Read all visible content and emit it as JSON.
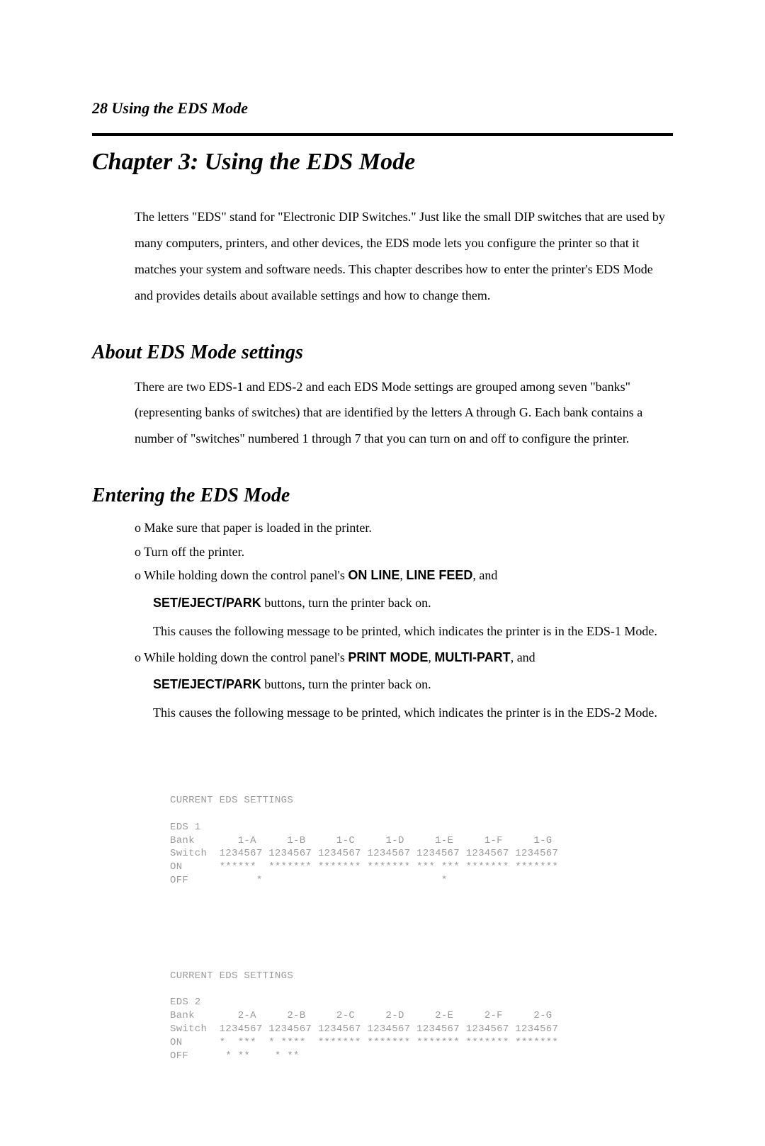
{
  "header": {
    "pageNumber": "28",
    "runningTitle": "Using the EDS Mode"
  },
  "chapterTitle": "Chapter 3: Using the EDS Mode",
  "intro": "The letters \"EDS\" stand for \"Electronic DIP Switches.\" Just like the small DIP switches that are used by many computers, printers, and other devices, the EDS mode lets you configure the printer so that it matches your system and software needs. This chapter describes how to enter the printer's EDS Mode and provides details about available settings and how to change them.",
  "section1": {
    "title": "About EDS Mode settings",
    "body": "There are two EDS-1 and EDS-2 and each EDS Mode settings are grouped among seven \"banks\" (representing banks of switches) that are identified by the letters A through G. Each bank contains a number of \"switches\" numbered 1 through 7 that you can turn on and off to configure the printer."
  },
  "section2": {
    "title": "Entering the EDS Mode",
    "items": [
      {
        "text": "o Make sure that paper is loaded in the printer."
      },
      {
        "text": "o Turn off the printer."
      },
      {
        "pre": "o While holding down the control panel's ",
        "b1": "ON LINE",
        "mid1": ", ",
        "b2": "LINE FEED",
        "post": ", and",
        "sub_b": "SET/EJECT/PARK",
        "sub_tail": " buttons, turn the printer back on.",
        "sub_desc": "This causes the following message to be printed, which indicates the printer is in the EDS-1 Mode."
      },
      {
        "pre": "o While holding down the control panel's ",
        "b1": "PRINT MODE",
        "mid1": ", ",
        "b2": "MULTI-PART",
        "post": ", and",
        "sub_b": "SET/EJECT/PARK",
        "sub_tail": " buttons, turn the printer back on.",
        "sub_desc": "This causes the following message to be printed, which indicates the printer is in the EDS-2 Mode."
      }
    ]
  },
  "printout": {
    "block1": {
      "title": "CURRENT EDS SETTINGS",
      "eds": "EDS 1",
      "bank": "Bank       1-A     1-B     1-C     1-D     1-E     1-F     1-G",
      "switch": "Switch  1234567 1234567 1234567 1234567 1234567 1234567 1234567",
      "on": "ON      ******  ******* ******* ******* *** *** ******* *******",
      "off": "OFF           *                             *"
    },
    "block2": {
      "title": "CURRENT EDS SETTINGS",
      "eds": "EDS 2",
      "bank": "Bank       2-A     2-B     2-C     2-D     2-E     2-F     2-G",
      "switch": "Switch  1234567 1234567 1234567 1234567 1234567 1234567 1234567",
      "on": "ON      *  ***  * ****  ******* ******* ******* ******* *******",
      "off": "OFF      * **    * **"
    }
  }
}
